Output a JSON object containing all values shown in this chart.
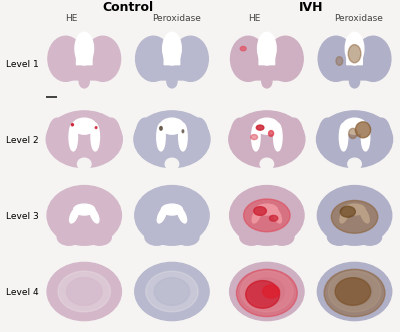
{
  "title_left": "Control",
  "title_right": "IVH",
  "col_headers": [
    "HE",
    "Peroxidase",
    "HE",
    "Peroxidase"
  ],
  "row_labels": [
    "Level 1",
    "Level 2",
    "Level 3",
    "Level 4"
  ],
  "figure_bg": "#f5f4f2",
  "cell_bg": "#f5f4f2",
  "title_fontsize": 9,
  "header_fontsize": 6.5,
  "label_fontsize": 6.5,
  "ncols": 4,
  "nrows": 4,
  "brain_he_color": "#d4b8ca",
  "brain_perox_color": "#b8b8ce",
  "brain_ivh_he_color": "#ceb0c2",
  "brain_ivh_perox_color": "#b0b0c8",
  "ventricle_color": "#f0eeee",
  "white_matter_color": "#e8e4e8",
  "blood_red": "#cc2233",
  "blood_pink": "#e06070",
  "brown_color": "#8B6035",
  "scalebar_color": "#222222"
}
